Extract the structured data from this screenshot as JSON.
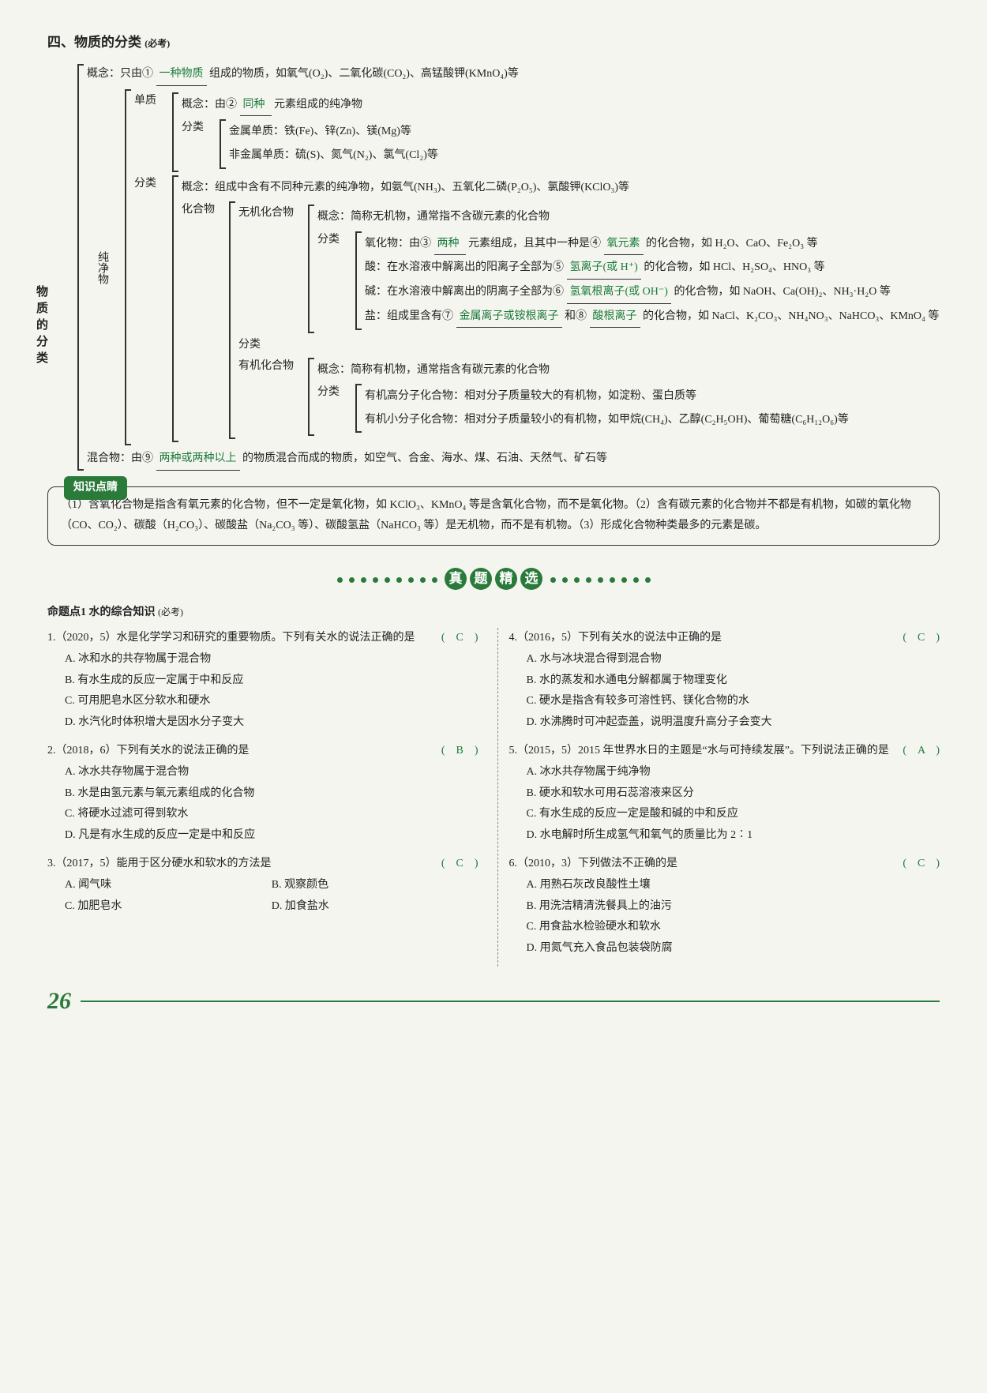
{
  "section": {
    "title": "四、物质的分类",
    "subtitle": "(必考)"
  },
  "tree": {
    "root": "物质的分类",
    "concept_line": {
      "prefix": "概念：只由①",
      "blank": "一种物质",
      "suffix": "组成的物质，如氧气(O₂)、二氧化碳(CO₂)、高锰酸钾(KMnO₄)等"
    },
    "pure": {
      "label": "纯净物",
      "danzhi": {
        "label": "单质",
        "concept": {
          "prefix": "概念：由②",
          "blank": "同种",
          "suffix": "元素组成的纯净物"
        },
        "fenlei_label": "分类",
        "metal": "金属单质：铁(Fe)、锌(Zn)、镁(Mg)等",
        "nonmetal": "非金属单质：硫(S)、氮气(N₂)、氯气(Cl₂)等"
      },
      "fenlei_label": "分类",
      "compound_concept": "概念：组成中含有不同种元素的纯净物，如氨气(NH₃)、五氧化二磷(P₂O₅)、氯酸钾(KClO₃)等",
      "compound": {
        "label": "化合物",
        "fenlei_label": "分类",
        "inorganic": {
          "label": "无机化合物",
          "concept": "概念：简称无机物，通常指不含碳元素的化合物",
          "fenlei_label": "分类",
          "oxide": {
            "prefix": "氧化物：由③",
            "blank1": "两种",
            "mid": "元素组成，且其中一种是④",
            "blank2": "氧元素",
            "suffix": "的化合物，如 H₂O、CaO、Fe₂O₃ 等"
          },
          "acid": {
            "prefix": "酸：在水溶液中解离出的阳离子全部为⑤",
            "blank": "氢离子(或 H⁺)",
            "suffix": "的化合物，如 HCl、H₂SO₄、HNO₃ 等"
          },
          "base": {
            "prefix": "碱：在水溶液中解离出的阴离子全部为⑥",
            "blank": "氢氧根离子(或 OH⁻)",
            "suffix": "的化合物，如 NaOH、Ca(OH)₂、NH₃·H₂O 等"
          },
          "salt": {
            "prefix": "盐：组成里含有⑦",
            "blank1": "金属离子或铵根离子",
            "mid": "和⑧",
            "blank2": "酸根离子",
            "suffix": "的化合物，如 NaCl、K₂CO₃、NH₄NO₃、NaHCO₃、KMnO₄ 等"
          }
        },
        "organic": {
          "label": "有机化合物",
          "concept": "概念：简称有机物，通常指含有碳元素的化合物",
          "fenlei_label": "分类",
          "macro": "有机高分子化合物：相对分子质量较大的有机物，如淀粉、蛋白质等",
          "micro": "有机小分子化合物：相对分子质量较小的有机物，如甲烷(CH₄)、乙醇(C₂H₅OH)、葡萄糖(C₆H₁₂O₆)等"
        }
      }
    },
    "mixture": {
      "prefix": "混合物：由⑨",
      "blank": "两种或两种以上",
      "suffix": "的物质混合而成的物质，如空气、合金、海水、煤、石油、天然气、矿石等"
    }
  },
  "knowledge": {
    "tag": "知识点睛",
    "body": "（1）含氧化合物是指含有氧元素的化合物，但不一定是氧化物，如 KClO₃、KMnO₄ 等是含氧化合物，而不是氧化物。（2）含有碳元素的化合物并不都是有机物，如碳的氧化物（CO、CO₂）、碳酸（H₂CO₃）、碳酸盐（Na₂CO₃ 等）、碳酸氢盐（NaHCO₃ 等）是无机物，而不是有机物。（3）形成化合物种类最多的元素是碳。",
    "highlight_color": "#1a7a3a"
  },
  "exam_header": {
    "chars": [
      "真",
      "题",
      "精",
      "选"
    ],
    "dot_count": 9
  },
  "questions": {
    "topic": {
      "label": "命题点1  水的综合知识",
      "sub": "(必考)"
    },
    "left": [
      {
        "num": "1.",
        "meta": "（2020，5）",
        "stem": "水是化学学习和研究的重要物质。下列有关水的说法正确的是",
        "answer": "C",
        "opts": [
          "A. 冰和水的共存物属于混合物",
          "B. 有水生成的反应一定属于中和反应",
          "C. 可用肥皂水区分软水和硬水",
          "D. 水汽化时体积增大是因水分子变大"
        ]
      },
      {
        "num": "2.",
        "meta": "（2018，6）",
        "stem": "下列有关水的说法正确的是",
        "answer": "B",
        "opts": [
          "A. 冰水共存物属于混合物",
          "B. 水是由氢元素与氧元素组成的化合物",
          "C. 将硬水过滤可得到软水",
          "D. 凡是有水生成的反应一定是中和反应"
        ]
      },
      {
        "num": "3.",
        "meta": "（2017，5）",
        "stem": "能用于区分硬水和软水的方法是",
        "answer": "C",
        "opts_layout": "2col",
        "opts": [
          "A. 闻气味",
          "B. 观察颜色",
          "C. 加肥皂水",
          "D. 加食盐水"
        ]
      }
    ],
    "right": [
      {
        "num": "4.",
        "meta": "（2016，5）",
        "stem": "下列有关水的说法中正确的是",
        "answer": "C",
        "opts": [
          "A. 水与冰块混合得到混合物",
          "B. 水的蒸发和水通电分解都属于物理变化",
          "C. 硬水是指含有较多可溶性钙、镁化合物的水",
          "D. 水沸腾时可冲起壶盖，说明温度升高分子会变大"
        ]
      },
      {
        "num": "5.",
        "meta": "（2015，5）",
        "stem": "2015 年世界水日的主题是“水与可持续发展”。下列说法正确的是",
        "answer": "A",
        "opts": [
          "A. 冰水共存物属于纯净物",
          "B. 硬水和软水可用石蕊溶液来区分",
          "C. 有水生成的反应一定是酸和碱的中和反应",
          "D. 水电解时所生成氢气和氧气的质量比为 2∶1"
        ]
      },
      {
        "num": "6.",
        "meta": "（2010，3）",
        "stem": "下列做法不正确的是",
        "answer": "C",
        "opts": [
          "A. 用熟石灰改良酸性土壤",
          "B. 用洗洁精清洗餐具上的油污",
          "C. 用食盐水检验硬水和软水",
          "D. 用氮气充入食品包装袋防腐"
        ]
      }
    ]
  },
  "page_number": "26",
  "colors": {
    "accent": "#2a7a3a",
    "blank_text": "#1a7a3a",
    "text": "#222222",
    "bg": "#f5f5f0"
  }
}
